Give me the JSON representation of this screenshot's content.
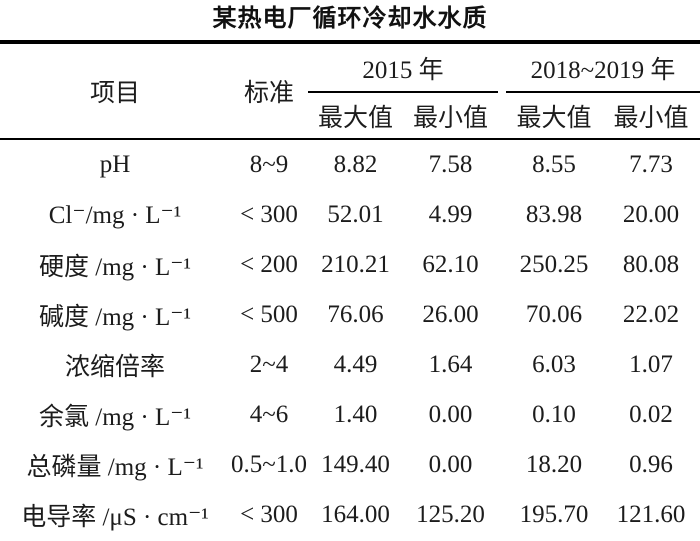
{
  "title": "某热电厂循环冷却水水质",
  "colors": {
    "background": "#ffffff",
    "text": "#1c1c1c",
    "rule": "#000000"
  },
  "table": {
    "headers": {
      "item": "项目",
      "standard": "标准",
      "group_2015": "2015 年",
      "group_2018_2019": "2018~2019 年",
      "sub_max": "最大值",
      "sub_min": "最小值"
    },
    "rows": [
      {
        "item": "pH",
        "standard": "8~9",
        "y2015_max": "8.82",
        "y2015_min": "7.58",
        "y2018_max": "8.55",
        "y2018_min": "7.73"
      },
      {
        "item": "Cl⁻/mg · L⁻¹",
        "standard": "< 300",
        "y2015_max": "52.01",
        "y2015_min": "4.99",
        "y2018_max": "83.98",
        "y2018_min": "20.00"
      },
      {
        "item": "硬度 /mg · L⁻¹",
        "standard": "< 200",
        "y2015_max": "210.21",
        "y2015_min": "62.10",
        "y2018_max": "250.25",
        "y2018_min": "80.08"
      },
      {
        "item": "碱度 /mg · L⁻¹",
        "standard": "< 500",
        "y2015_max": "76.06",
        "y2015_min": "26.00",
        "y2018_max": "70.06",
        "y2018_min": "22.02"
      },
      {
        "item": "浓缩倍率",
        "standard": "2~4",
        "y2015_max": "4.49",
        "y2015_min": "1.64",
        "y2018_max": "6.03",
        "y2018_min": "1.07"
      },
      {
        "item": "余氯 /mg · L⁻¹",
        "standard": "4~6",
        "y2015_max": "1.40",
        "y2015_min": "0.00",
        "y2018_max": "0.10",
        "y2018_min": "0.02"
      },
      {
        "item": "总磷量 /mg · L⁻¹",
        "standard": "0.5~1.0",
        "y2015_max": "149.40",
        "y2015_min": "0.00",
        "y2018_max": "18.20",
        "y2018_min": "0.96"
      },
      {
        "item": "电导率 /μS · cm⁻¹",
        "standard": "< 300",
        "y2015_max": "164.00",
        "y2015_min": "125.20",
        "y2018_max": "195.70",
        "y2018_min": "121.60"
      }
    ]
  }
}
